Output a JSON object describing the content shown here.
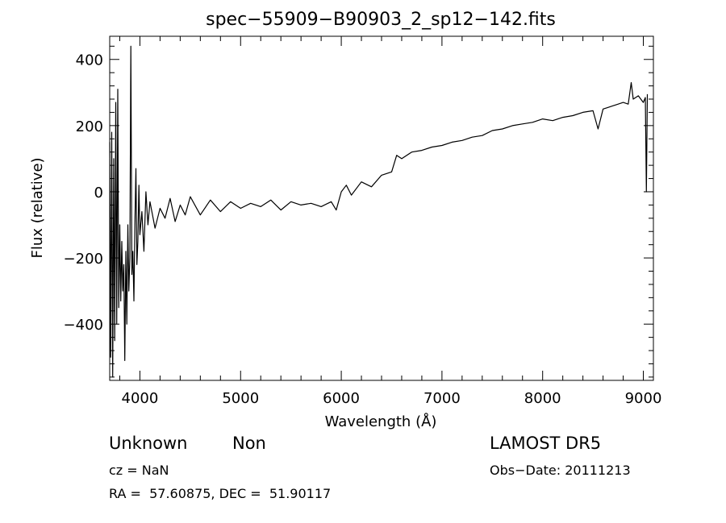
{
  "chart_data": {
    "type": "line",
    "title": "spec−55909−B90903_2_sp12−142.fits",
    "xlabel": "Wavelength (Å)",
    "ylabel": "Flux (relative)",
    "xlim": [
      3700,
      9100
    ],
    "ylim": [
      -570,
      470
    ],
    "x_ticks": [
      4000,
      5000,
      6000,
      7000,
      8000,
      9000
    ],
    "y_ticks": [
      -400,
      -200,
      0,
      200,
      400
    ],
    "x_tick_labels": [
      "4000",
      "5000",
      "6000",
      "7000",
      "8000",
      "9000"
    ],
    "y_tick_labels": [
      "−400",
      "−200",
      "0",
      "200",
      "400"
    ],
    "grid": false,
    "legend": "none",
    "series": [
      {
        "x": [
          3700,
          3710,
          3720,
          3730,
          3740,
          3750,
          3760,
          3770,
          3780,
          3790,
          3800,
          3810,
          3820,
          3830,
          3840,
          3850,
          3860,
          3870,
          3880,
          3890,
          3900,
          3910,
          3920,
          3930,
          3940,
          3950,
          3960,
          3970,
          3980,
          3990,
          4000,
          4020,
          4040,
          4060,
          4080,
          4100,
          4150,
          4200,
          4250,
          4300,
          4350,
          4400,
          4450,
          4500,
          4600,
          4700,
          4800,
          4900,
          5000,
          5100,
          5200,
          5300,
          5400,
          5500,
          5600,
          5700,
          5800,
          5900,
          5950,
          6000,
          6050,
          6100,
          6200,
          6300,
          6400,
          6500,
          6550,
          6600,
          6700,
          6800,
          6900,
          7000,
          7100,
          7200,
          7300,
          7400,
          7500,
          7600,
          7700,
          7800,
          7900,
          8000,
          8100,
          8200,
          8300,
          8400,
          8500,
          8550,
          8600,
          8650,
          8700,
          8800,
          8850,
          8880,
          8900,
          8950,
          9000,
          9020,
          9030,
          9040
        ],
        "y": [
          150,
          -500,
          180,
          -560,
          100,
          -450,
          270,
          -400,
          310,
          -350,
          -100,
          -330,
          -150,
          -300,
          -220,
          -510,
          -180,
          -400,
          -100,
          -300,
          -200,
          440,
          -250,
          -180,
          -330,
          -100,
          70,
          -220,
          -150,
          20,
          -130,
          -60,
          -180,
          0,
          -100,
          -30,
          -110,
          -50,
          -80,
          -20,
          -90,
          -40,
          -70,
          -15,
          -70,
          -25,
          -60,
          -30,
          -50,
          -35,
          -45,
          -25,
          -55,
          -30,
          -40,
          -35,
          -45,
          -30,
          -55,
          0,
          20,
          -10,
          30,
          15,
          50,
          60,
          110,
          100,
          120,
          125,
          135,
          140,
          150,
          155,
          165,
          170,
          185,
          190,
          200,
          205,
          210,
          220,
          215,
          225,
          230,
          240,
          245,
          190,
          250,
          255,
          260,
          270,
          265,
          330,
          280,
          290,
          270,
          285,
          0,
          295
        ]
      }
    ]
  },
  "info": {
    "object_class": "Unknown",
    "object_subclass": "Non",
    "survey": "LAMOST DR5",
    "cz": "cz = NaN",
    "obs_date": "Obs−Date: 20111213",
    "coords": "RA =  57.60875, DEC =  51.90117"
  }
}
